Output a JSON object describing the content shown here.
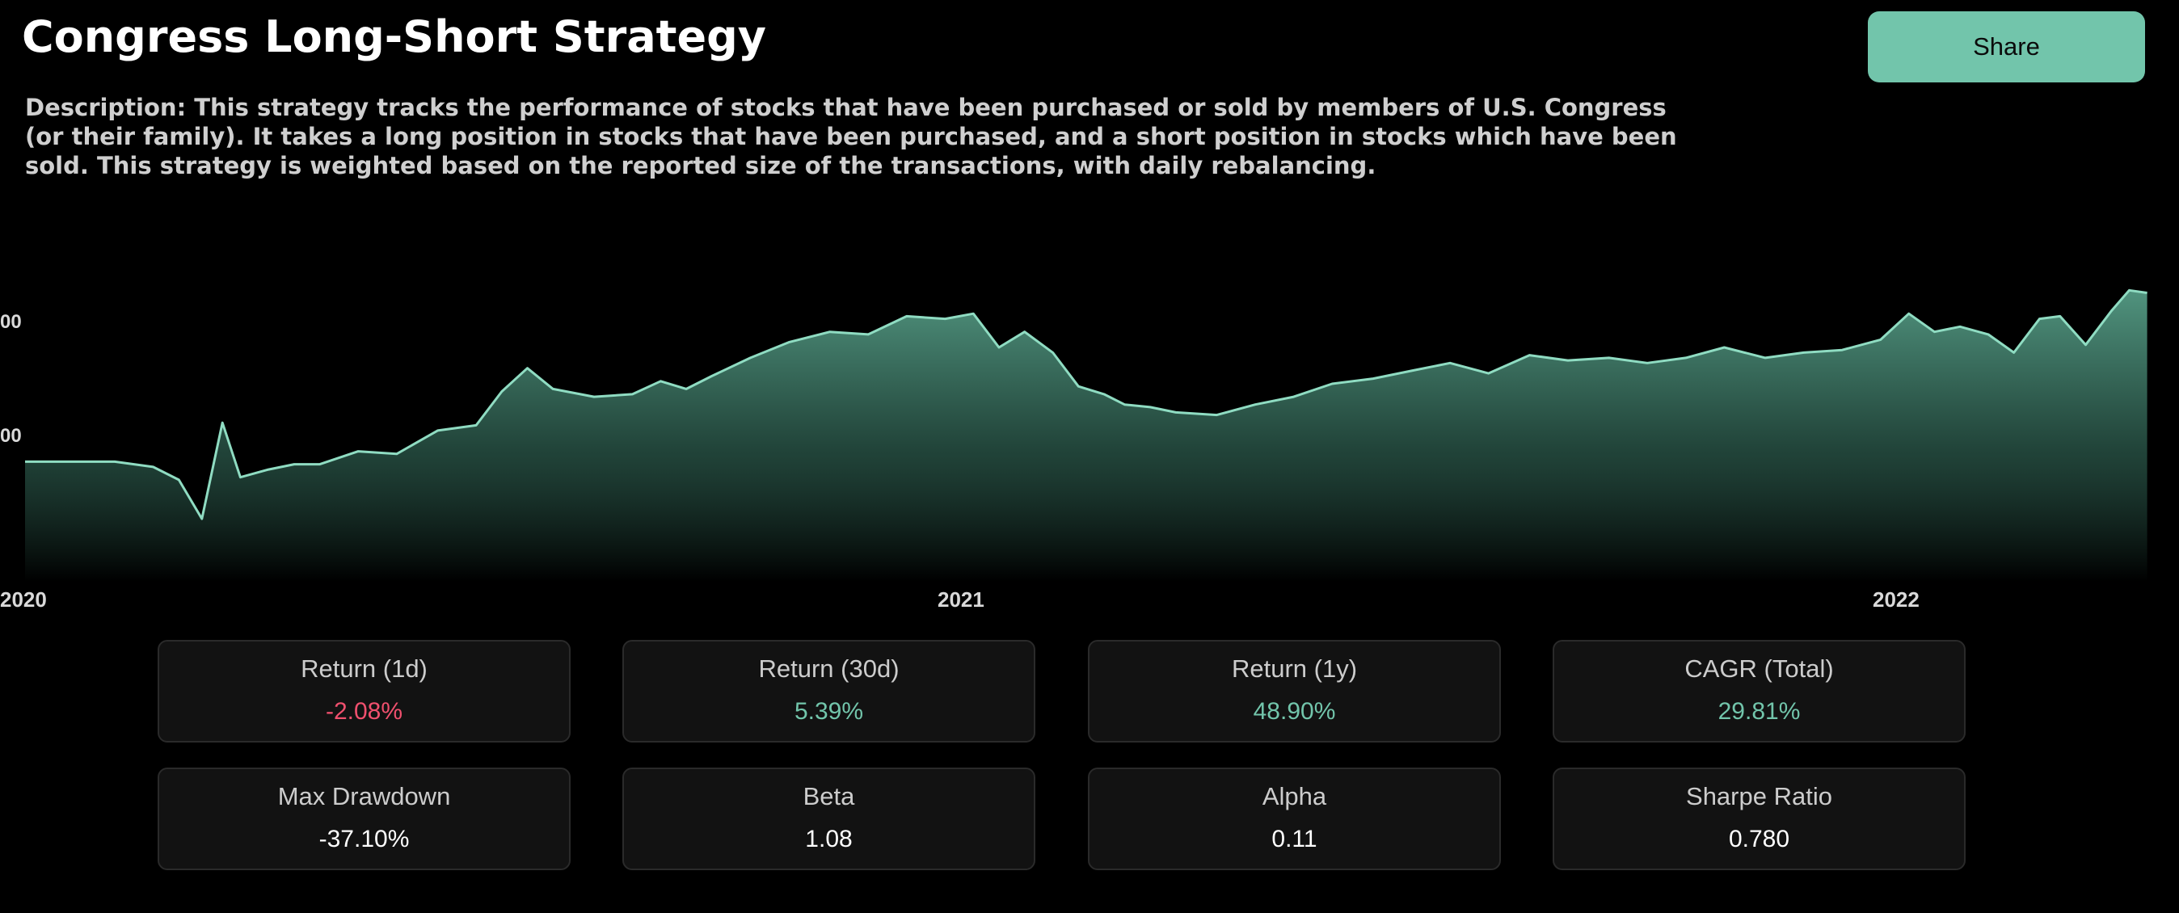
{
  "header": {
    "title": "Congress Long-Short Strategy",
    "share_label": "Share"
  },
  "description": "Description: This strategy tracks the performance of stocks that have been purchased or sold by members of U.S. Congress (or their family). It takes a long position in stocks that have been purchased, and a short position in stocks which have been sold. This strategy is weighted based on the reported size of the transactions, with daily rebalancing.",
  "colors": {
    "accent": "#72c5ab",
    "negative": "#f0506e",
    "positive": "#72c5ab",
    "neutral": "#ffffff"
  },
  "chart_data": {
    "type": "area",
    "y_tick_labels": [
      "00",
      "00"
    ],
    "x_tick_labels": [
      "2020",
      "2021",
      "2022"
    ],
    "ylim": [
      60,
      200
    ],
    "grid": false,
    "series": [
      {
        "x": [
          "2020-01-01",
          "2020-01-20",
          "2020-02-05",
          "2020-02-20",
          "2020-03-01",
          "2020-03-10",
          "2020-03-18",
          "2020-03-25",
          "2020-04-05",
          "2020-04-15",
          "2020-04-25",
          "2020-05-10",
          "2020-05-25",
          "2020-06-10",
          "2020-06-25",
          "2020-07-05",
          "2020-07-15",
          "2020-07-25",
          "2020-08-10",
          "2020-08-25",
          "2020-09-05",
          "2020-09-15",
          "2020-09-25",
          "2020-10-10",
          "2020-10-25",
          "2020-11-10",
          "2020-11-25",
          "2020-12-10",
          "2020-12-25",
          "2021-01-05",
          "2021-01-15",
          "2021-01-25",
          "2021-02-05",
          "2021-02-15",
          "2021-02-25",
          "2021-03-05",
          "2021-03-15",
          "2021-03-25",
          "2021-04-10",
          "2021-04-25",
          "2021-05-10",
          "2021-05-25",
          "2021-06-10",
          "2021-06-25",
          "2021-07-10",
          "2021-07-25",
          "2021-08-10",
          "2021-08-25",
          "2021-09-10",
          "2021-09-25",
          "2021-10-10",
          "2021-10-25",
          "2021-11-10",
          "2021-11-25",
          "2021-12-10",
          "2021-12-25",
          "2022-01-05",
          "2022-01-15",
          "2022-01-25",
          "2022-02-05",
          "2022-02-15",
          "2022-02-25",
          "2022-03-05",
          "2022-03-15",
          "2022-03-25",
          "2022-04-01",
          "2022-04-08"
        ],
        "values": [
          100,
          100,
          100,
          98,
          93,
          78,
          115,
          94,
          97,
          99,
          99,
          104,
          103,
          112,
          114,
          127,
          136,
          128,
          125,
          126,
          131,
          128,
          133,
          140,
          146,
          150,
          149,
          156,
          155,
          157,
          144,
          150,
          142,
          129,
          126,
          122,
          121,
          119,
          118,
          122,
          125,
          130,
          132,
          135,
          138,
          134,
          141,
          139,
          140,
          138,
          140,
          144,
          140,
          142,
          143,
          147,
          157,
          150,
          152,
          149,
          142,
          155,
          156,
          145,
          158,
          166,
          165
        ]
      }
    ]
  },
  "stats": {
    "row1": [
      {
        "label": "Return (1d)",
        "value": "-2.08%",
        "tone": "negative"
      },
      {
        "label": "Return (30d)",
        "value": "5.39%",
        "tone": "positive"
      },
      {
        "label": "Return (1y)",
        "value": "48.90%",
        "tone": "positive"
      },
      {
        "label": "CAGR (Total)",
        "value": "29.81%",
        "tone": "positive"
      }
    ],
    "row2": [
      {
        "label": "Max Drawdown",
        "value": "-37.10%",
        "tone": "neutral"
      },
      {
        "label": "Beta",
        "value": "1.08",
        "tone": "neutral"
      },
      {
        "label": "Alpha",
        "value": "0.11",
        "tone": "neutral"
      },
      {
        "label": "Sharpe Ratio",
        "value": "0.780",
        "tone": "neutral"
      }
    ]
  }
}
